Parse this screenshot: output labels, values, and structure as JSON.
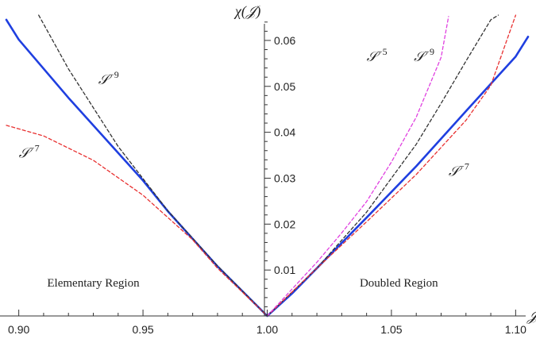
{
  "chart_data": {
    "type": "line",
    "xlabel": "𝒥",
    "ylabel": "χ(𝒥)",
    "xlim": [
      0.895,
      1.105
    ],
    "ylim": [
      0.0,
      0.065
    ],
    "xticks": [
      0.9,
      0.95,
      1.0,
      1.05,
      1.1
    ],
    "xtick_labels": [
      "0.90",
      "0.95",
      "1.00",
      "1.05",
      "1.10"
    ],
    "yticks": [
      0.01,
      0.02,
      0.03,
      0.04,
      0.05,
      0.06
    ],
    "ytick_labels": [
      "0.01",
      "0.02",
      "0.03",
      "0.04",
      "0.05",
      "0.06"
    ],
    "grid": false,
    "series": [
      {
        "color": "#1f3fe0",
        "style": "solid",
        "x": [
          0.895,
          0.9,
          0.92,
          0.94,
          0.95,
          0.96,
          0.98,
          1.0,
          1.01,
          1.02,
          1.04,
          1.06,
          1.08,
          1.1,
          1.105
        ],
        "y": [
          0.0645,
          0.0602,
          0.0475,
          0.0355,
          0.0295,
          0.0228,
          0.0108,
          0.0,
          0.0049,
          0.0104,
          0.0214,
          0.0326,
          0.0446,
          0.0565,
          0.0608
        ]
      },
      {
        "color": "#333333",
        "style": "dashed",
        "x": [
          0.908,
          0.92,
          0.94,
          0.96,
          0.98,
          1.0,
          1.02,
          1.04,
          1.06,
          1.07,
          1.08,
          1.09,
          1.093
        ],
        "y": [
          0.0655,
          0.0538,
          0.0369,
          0.0229,
          0.0109,
          0.0,
          0.0104,
          0.0226,
          0.0374,
          0.0463,
          0.0555,
          0.0645,
          0.0655
        ]
      },
      {
        "color": "#e83030",
        "style": "dashed",
        "x": [
          0.895,
          0.91,
          0.93,
          0.95,
          0.97,
          0.98,
          1.0,
          1.02,
          1.04,
          1.06,
          1.08,
          1.09,
          1.1
        ],
        "y": [
          0.0415,
          0.0392,
          0.0339,
          0.0263,
          0.0166,
          0.0104,
          0.0,
          0.0104,
          0.0205,
          0.0308,
          0.0426,
          0.0502,
          0.0655
        ]
      },
      {
        "color": "#e040e0",
        "style": "dashed",
        "x": [
          1.0,
          1.02,
          1.03,
          1.04,
          1.05,
          1.06,
          1.07,
          1.073
        ],
        "y": [
          0.0,
          0.0117,
          0.0181,
          0.0249,
          0.0335,
          0.0433,
          0.0563,
          0.0652
        ]
      }
    ],
    "annotations": [
      {
        "text": "𝒮",
        "exp": "−9",
        "x": 0.932,
        "y": 0.0505
      },
      {
        "text": "𝒮",
        "exp": "−7",
        "x": 0.9,
        "y": 0.0345
      },
      {
        "text": "𝒮",
        "exp": "−5",
        "x": 1.04,
        "y": 0.0555
      },
      {
        "text": "𝒮",
        "exp": "−9",
        "x": 1.059,
        "y": 0.0555
      },
      {
        "text": "𝒮",
        "exp": "−7",
        "x": 1.073,
        "y": 0.0305
      }
    ],
    "region_labels": [
      {
        "text": "Elementary Region",
        "x": 0.93,
        "y": 0.0064
      },
      {
        "text": "Doubled Region",
        "x": 1.053,
        "y": 0.0064
      }
    ]
  }
}
